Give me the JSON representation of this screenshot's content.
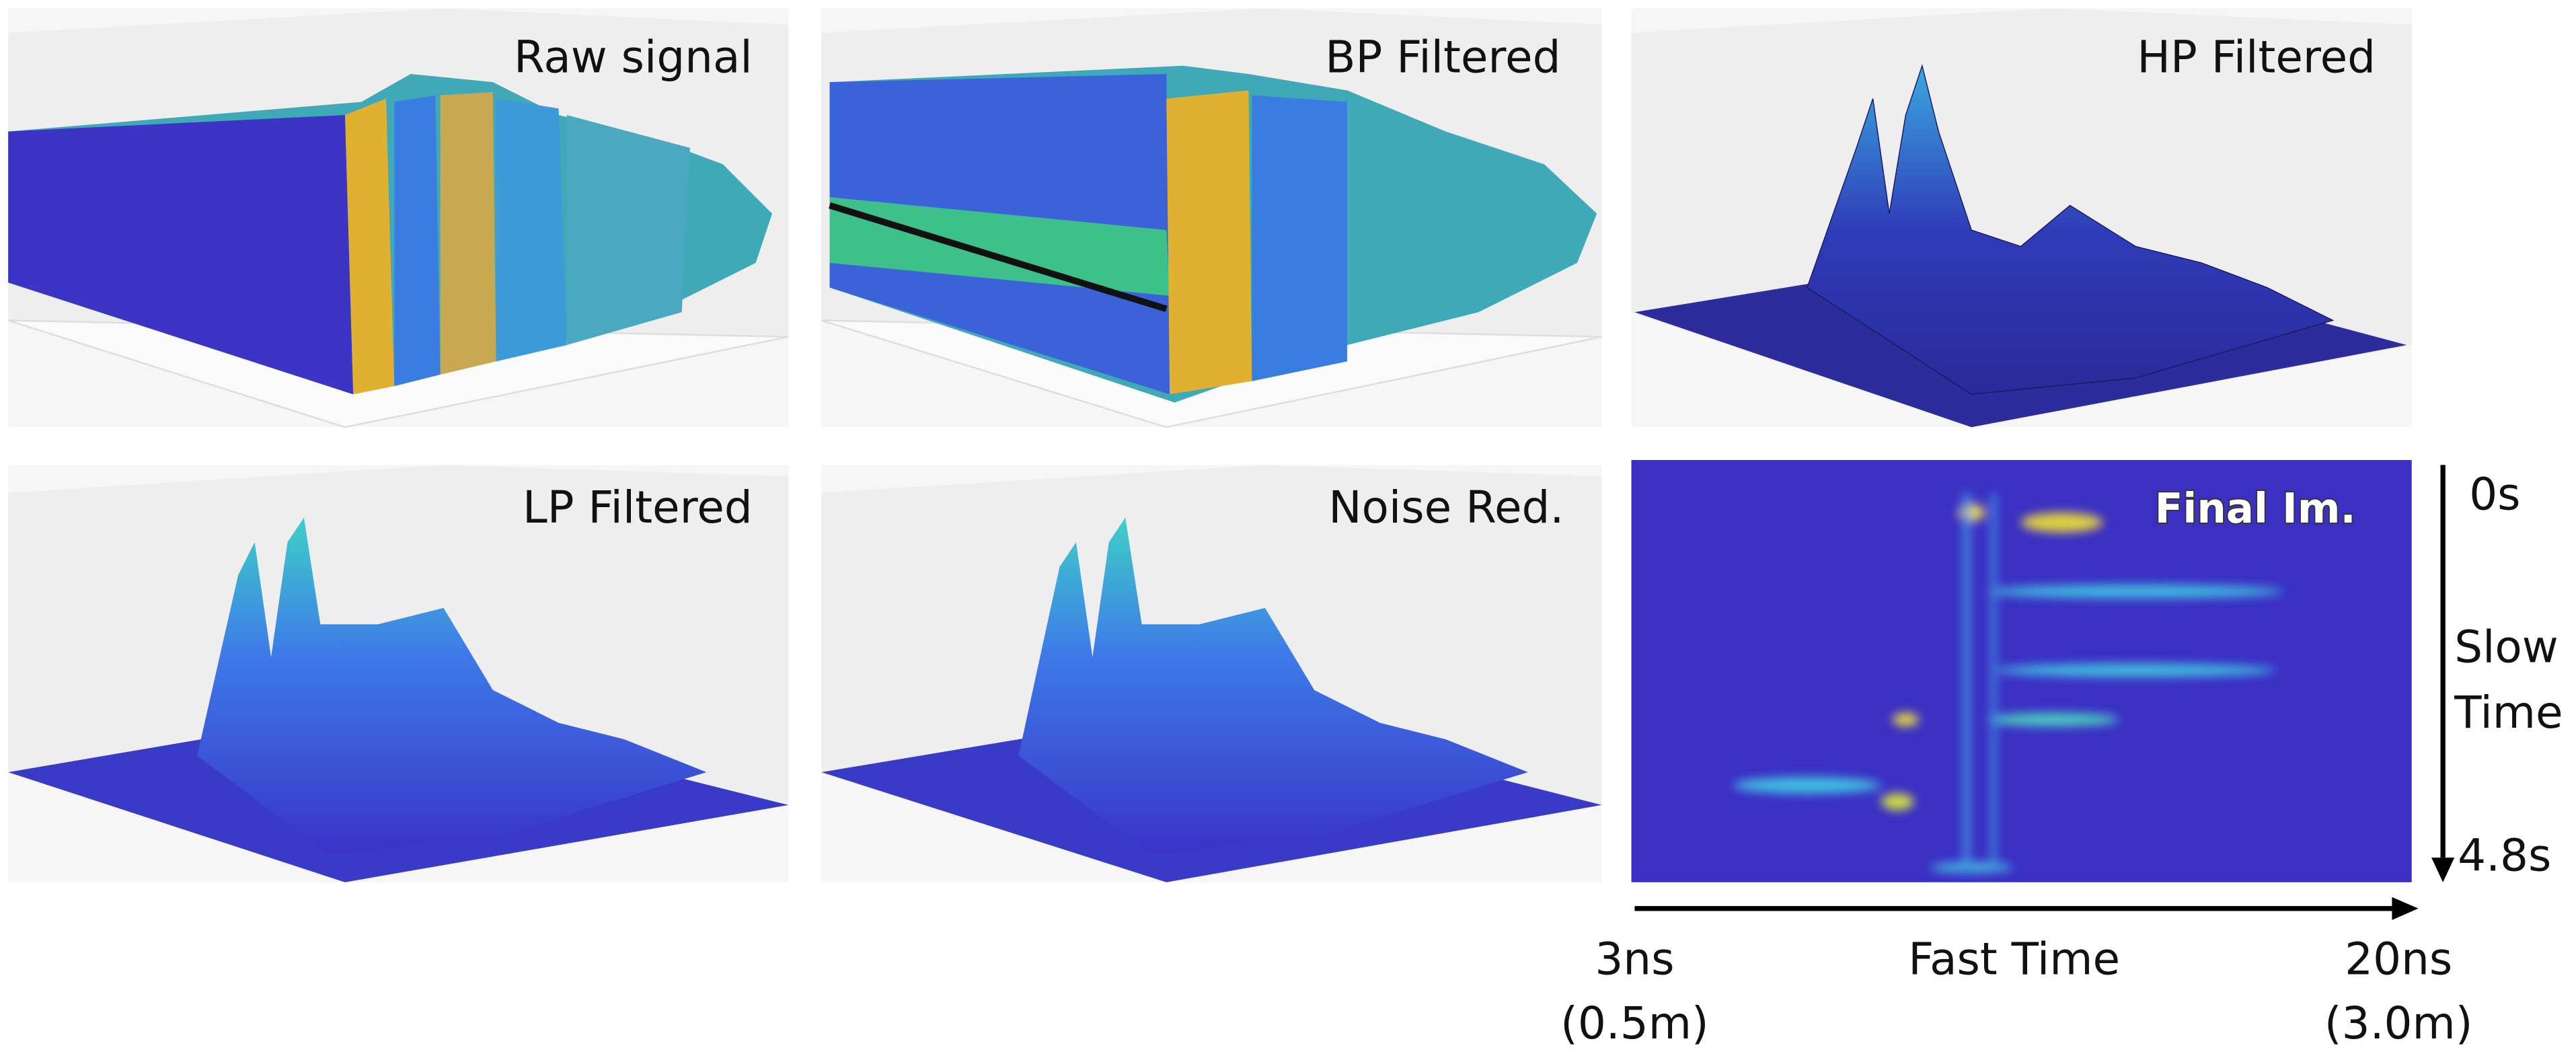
{
  "panels": [
    {
      "title": "Raw signal"
    },
    {
      "title": "BP Filtered"
    },
    {
      "title": "HP Filtered"
    },
    {
      "title": "LP Filtered"
    },
    {
      "title": "Noise Red."
    },
    {
      "title": "Final Im."
    }
  ],
  "slow_axis": {
    "start": "0s",
    "label_line1": "Slow",
    "label_line2": "Time",
    "end": "4.8s"
  },
  "fast_axis": {
    "start": "3ns",
    "start_range": "(0.5m)",
    "label": "Fast Time",
    "end": "20ns",
    "end_range": "(3.0m)"
  }
}
